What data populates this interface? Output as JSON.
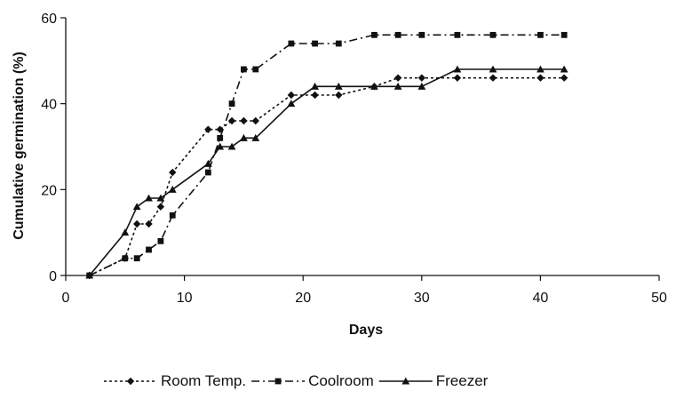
{
  "chart_data": {
    "type": "line",
    "title": "",
    "xlabel": "Days",
    "ylabel": "Cumulative germination (%)",
    "xlim": [
      0,
      50
    ],
    "ylim": [
      0,
      60
    ],
    "xticks": [
      0,
      10,
      20,
      30,
      40,
      50
    ],
    "yticks": [
      0,
      20,
      40,
      60
    ],
    "grid": false,
    "legend_position": "bottom",
    "series": [
      {
        "name": "Room Temp.",
        "marker": "diamond",
        "line_style": "dotted",
        "color": "#111111",
        "x": [
          2,
          5,
          6,
          7,
          8,
          9,
          12,
          13,
          14,
          15,
          16,
          19,
          21,
          23,
          26,
          28,
          30,
          33,
          36,
          40,
          42
        ],
        "y": [
          0,
          4,
          12,
          12,
          16,
          24,
          34,
          34,
          36,
          36,
          36,
          42,
          42,
          42,
          44,
          46,
          46,
          46,
          46,
          46,
          46
        ]
      },
      {
        "name": "Coolroom",
        "marker": "square",
        "line_style": "dashdot",
        "color": "#111111",
        "x": [
          2,
          5,
          6,
          7,
          8,
          9,
          12,
          13,
          14,
          15,
          16,
          19,
          21,
          23,
          26,
          28,
          30,
          33,
          36,
          40,
          42
        ],
        "y": [
          0,
          4,
          4,
          6,
          8,
          14,
          24,
          32,
          40,
          48,
          48,
          54,
          54,
          54,
          56,
          56,
          56,
          56,
          56,
          56,
          56
        ]
      },
      {
        "name": "Freezer",
        "marker": "triangle",
        "line_style": "solid",
        "color": "#111111",
        "x": [
          2,
          5,
          6,
          7,
          8,
          9,
          12,
          13,
          14,
          15,
          16,
          19,
          21,
          23,
          26,
          28,
          30,
          33,
          36,
          40,
          42
        ],
        "y": [
          0,
          10,
          16,
          18,
          18,
          20,
          26,
          30,
          30,
          32,
          32,
          40,
          44,
          44,
          44,
          44,
          44,
          48,
          48,
          48,
          48
        ]
      }
    ]
  }
}
